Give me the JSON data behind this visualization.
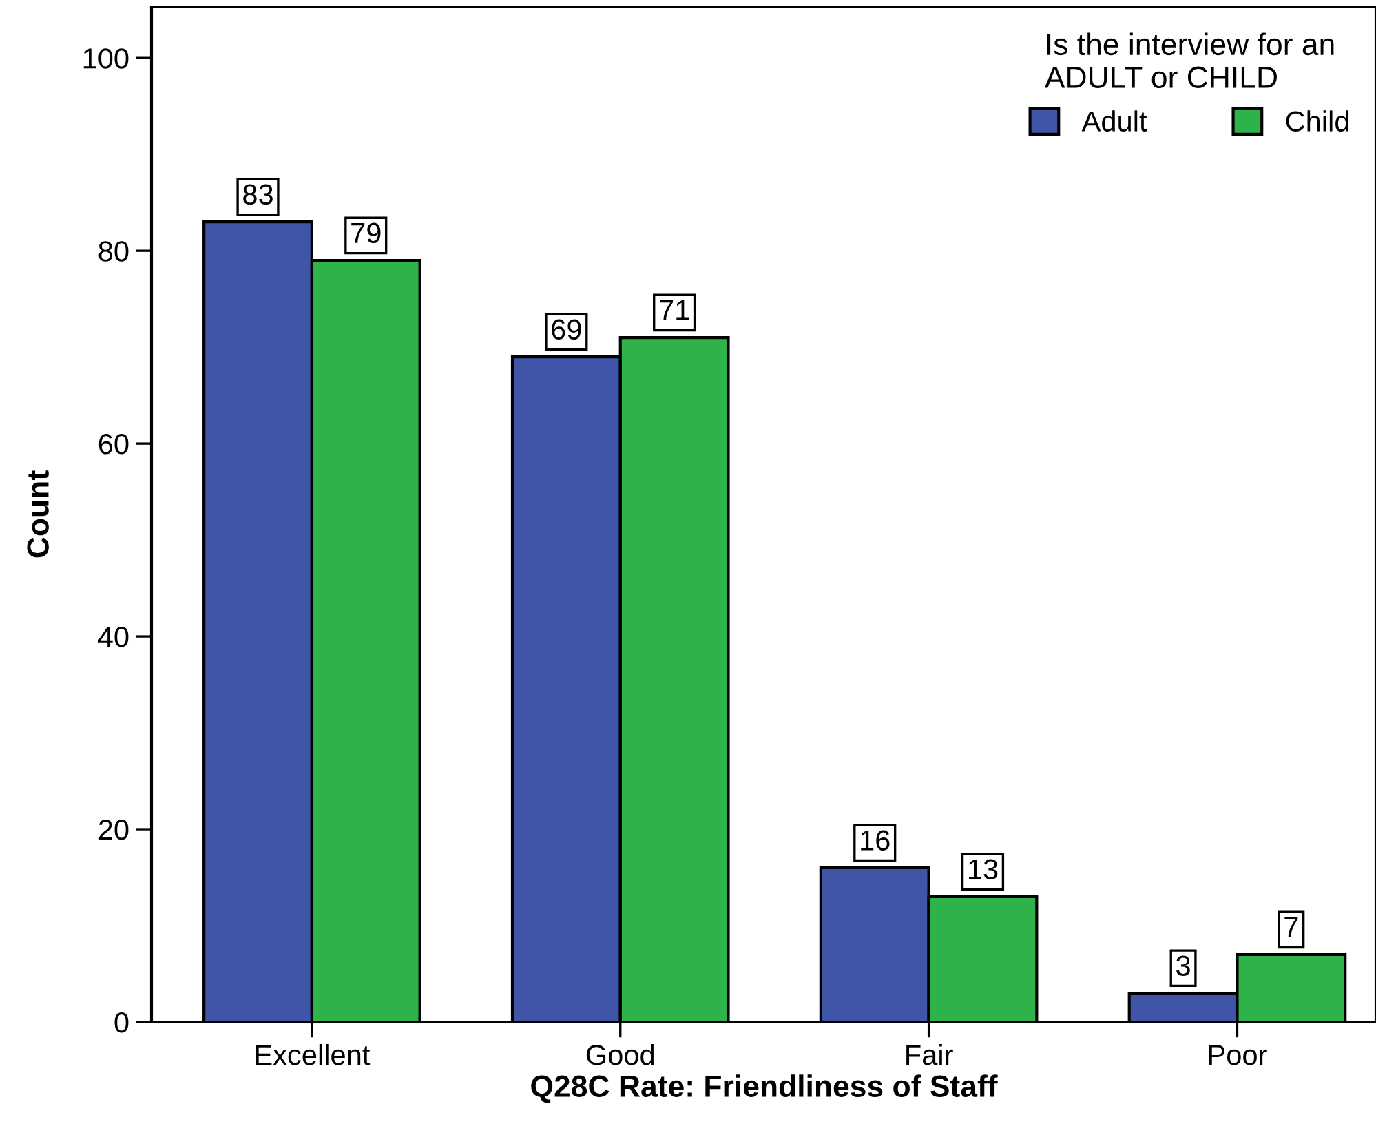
{
  "chart_data": {
    "type": "bar",
    "xlabel": "Q28C Rate: Friendliness of Staff",
    "ylabel": "Count",
    "legend_title": "Is the interview for an\nADULT or CHILD",
    "categories": [
      "Excellent",
      "Good",
      "Fair",
      "Poor"
    ],
    "series": [
      {
        "name": "Adult",
        "color": "#3f56a8",
        "values": [
          83,
          69,
          16,
          3
        ]
      },
      {
        "name": "Child",
        "color": "#2db34a",
        "values": [
          79,
          71,
          13,
          7
        ]
      }
    ],
    "ylim": [
      0,
      105.3
    ],
    "yticks": [
      0,
      20,
      40,
      60,
      80,
      100
    ],
    "data_labels": true,
    "legend": "top right",
    "grid": false
  }
}
